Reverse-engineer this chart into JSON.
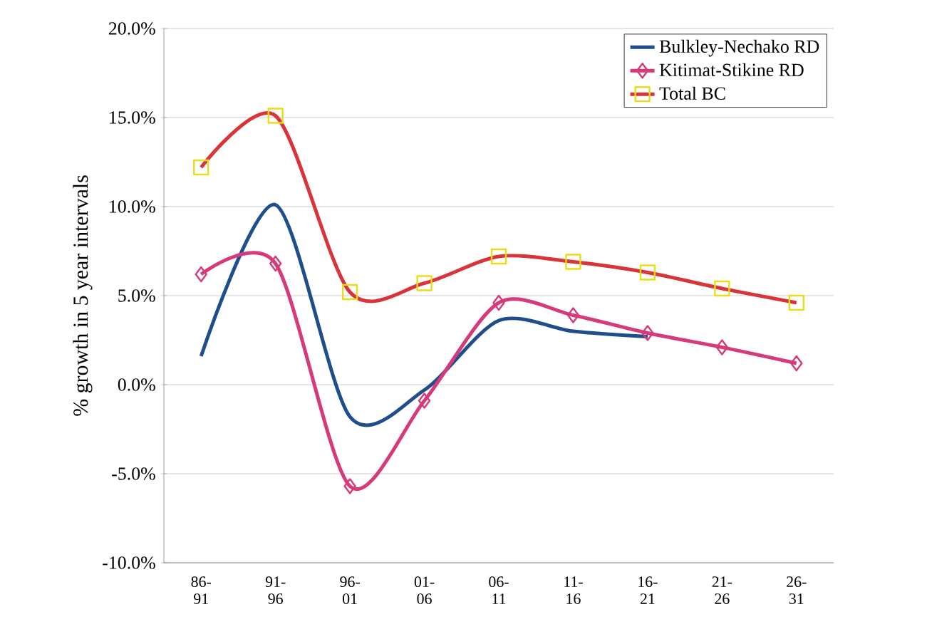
{
  "chart_data": {
    "type": "line",
    "ylabel": "% growth in 5 year intervals",
    "categories": [
      "86-91",
      "91-96",
      "96-01",
      "01-06",
      "06-11",
      "11-16",
      "16-21",
      "21-26",
      "26-31"
    ],
    "series": [
      {
        "name": "Bulkley-Nechako RD",
        "color": "#1f4e8c",
        "marker": "none",
        "values": [
          1.6,
          10.1,
          -1.8,
          -0.3,
          3.6,
          3.0,
          2.7,
          null,
          null
        ]
      },
      {
        "name": "Kitimat-Stikine RD",
        "color": "#d63a7a",
        "marker": "diamond",
        "values": [
          6.2,
          6.8,
          -5.7,
          -0.9,
          4.6,
          3.9,
          2.9,
          2.1,
          1.2
        ]
      },
      {
        "name": "Total BC",
        "color": "#d9343a",
        "marker": "square",
        "values": [
          12.2,
          15.1,
          5.2,
          5.7,
          7.2,
          6.9,
          6.3,
          5.4,
          4.6
        ]
      }
    ],
    "ylim": [
      -10,
      20
    ],
    "yticks": [
      {
        "value": -10,
        "label": "-10.0%"
      },
      {
        "value": -5,
        "label": "-5.0%"
      },
      {
        "value": 0,
        "label": "0.0%"
      },
      {
        "value": 5,
        "label": "5.0%"
      },
      {
        "value": 10,
        "label": "10.0%"
      },
      {
        "value": 15,
        "label": "15.0%"
      },
      {
        "value": 20,
        "label": "20.0%"
      }
    ],
    "grid": "y",
    "legend": "top right"
  }
}
